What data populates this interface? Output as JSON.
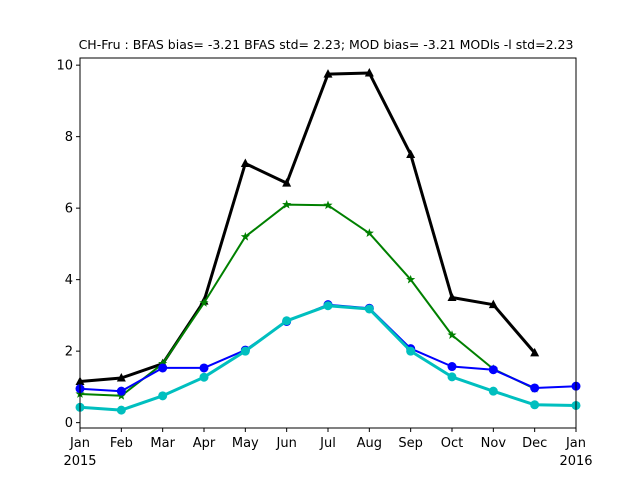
{
  "chart_data": {
    "type": "line",
    "title": "CH-Fru   : BFAS bias= -3.21 BFAS std= 2.23; MOD bias= -3.21 MODls -l std=2.23",
    "xlabel": "",
    "ylabel": "",
    "x_ticks": [
      "Jan",
      "Feb",
      "Mar",
      "Apr",
      "May",
      "Jun",
      "Jul",
      "Aug",
      "Sep",
      "Oct",
      "Nov",
      "Dec",
      "Jan"
    ],
    "x_year_labels": [
      "2015",
      "2016"
    ],
    "x_dates": [
      "2015-01",
      "2015-02",
      "2015-03",
      "2015-04",
      "2015-05",
      "2015-06",
      "2015-07",
      "2015-08",
      "2015-09",
      "2015-10",
      "2015-11",
      "2015-12",
      "2016-01"
    ],
    "y_ticks": [
      "0",
      "2",
      "4",
      "6",
      "8",
      "10"
    ],
    "ylim": [
      -0.15,
      10.2
    ],
    "grid": false,
    "series": [
      {
        "color": "#000000",
        "marker": "triangle",
        "linewidth": 3,
        "x": [
          "2015-01",
          "2015-02",
          "2015-03",
          "2015-04",
          "2015-05",
          "2015-06",
          "2015-07",
          "2015-08",
          "2015-09",
          "2015-10",
          "2015-11",
          "2015-12"
        ],
        "values": [
          1.15,
          1.25,
          1.65,
          3.4,
          7.25,
          6.7,
          9.75,
          9.78,
          7.5,
          3.5,
          3.3,
          1.95
        ]
      },
      {
        "color": "#008000",
        "marker": "star",
        "linewidth": 2,
        "x": [
          "2015-01",
          "2015-02",
          "2015-03",
          "2015-04",
          "2015-05",
          "2015-06",
          "2015-07",
          "2015-08",
          "2015-09",
          "2015-10",
          "2015-11",
          "2015-12"
        ],
        "values": [
          0.8,
          0.75,
          1.65,
          3.35,
          5.2,
          6.1,
          6.08,
          5.3,
          4.0,
          2.45,
          1.5,
          0.95
        ]
      },
      {
        "color": "#0000ff",
        "marker": "circle",
        "linewidth": 2,
        "x": [
          "2015-01",
          "2015-02",
          "2015-03",
          "2015-04",
          "2015-05",
          "2015-06",
          "2015-07",
          "2015-08",
          "2015-09",
          "2015-10",
          "2015-11",
          "2015-12",
          "2016-01"
        ],
        "values": [
          0.95,
          0.88,
          1.53,
          1.53,
          2.03,
          2.83,
          3.3,
          3.2,
          2.07,
          1.57,
          1.48,
          0.97,
          1.02
        ]
      },
      {
        "color": "#00bfbf",
        "marker": "circle",
        "linewidth": 3,
        "x": [
          "2015-01",
          "2015-02",
          "2015-03",
          "2015-04",
          "2015-05",
          "2015-06",
          "2015-07",
          "2015-08",
          "2015-09",
          "2015-10",
          "2015-11",
          "2015-12",
          "2016-01"
        ],
        "values": [
          0.43,
          0.35,
          0.75,
          1.27,
          2.0,
          2.85,
          3.27,
          3.18,
          2.0,
          1.28,
          0.88,
          0.5,
          0.48
        ]
      }
    ]
  }
}
